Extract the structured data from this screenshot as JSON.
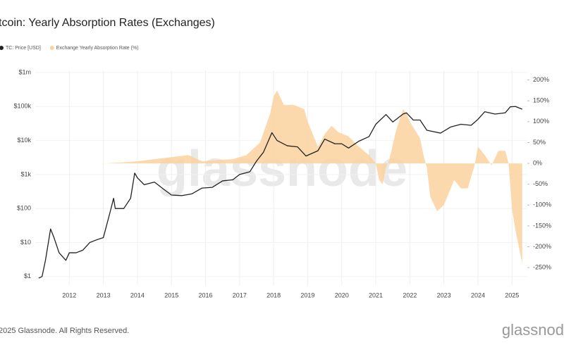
{
  "chart_data": {
    "type": "line",
    "title": "tcoin: Yearly Absorption Rates (Exchanges)",
    "watermark": "glassnode",
    "footer": "2025 Glassnode. All Rights Reserved.",
    "brand": "glassnod",
    "xlim": [
      2011.0,
      2025.45
    ],
    "xticks": [
      2012,
      2013,
      2014,
      2015,
      2016,
      2017,
      2018,
      2019,
      2020,
      2021,
      2022,
      2023,
      2024,
      2025
    ],
    "ylim": [
      0.56,
      1150000
    ],
    "log_y": true,
    "yticks": [
      {
        "value": 1,
        "label": "$1"
      },
      {
        "value": 10,
        "label": "$10"
      },
      {
        "value": 100,
        "label": "$100"
      },
      {
        "value": 1000,
        "label": "$1k"
      },
      {
        "value": 10000,
        "label": "$10k"
      },
      {
        "value": 100000,
        "label": "$100k"
      },
      {
        "value": 1000000,
        "label": "$1m"
      }
    ],
    "y2lim": [
      -292,
      223
    ],
    "y2ticks": [
      {
        "value": 200,
        "label": "200%"
      },
      {
        "value": 150,
        "label": "150%"
      },
      {
        "value": 100,
        "label": "100%"
      },
      {
        "value": 50,
        "label": "50%"
      },
      {
        "value": 0,
        "label": "0%"
      },
      {
        "value": -50,
        "label": "-50%"
      },
      {
        "value": -100,
        "label": "-100%"
      },
      {
        "value": -150,
        "label": "-150%"
      },
      {
        "value": -200,
        "label": "-200%"
      },
      {
        "value": -250,
        "label": "-250%"
      }
    ],
    "grid": true,
    "series": [
      {
        "name": "Exchange Yearly Absorption Rate (%)",
        "color": "#fbd29f",
        "type": "area",
        "axis": "y2",
        "x": [
          2013.0,
          2013.5,
          2014.0,
          2014.5,
          2015.0,
          2015.5,
          2015.9,
          2016.3,
          2016.8,
          2017.2,
          2017.6,
          2017.9,
          2018.0,
          2018.1,
          2018.3,
          2018.6,
          2018.9,
          2019.0,
          2019.3,
          2019.5,
          2019.7,
          2019.9,
          2020.2,
          2020.5,
          2020.8,
          2021.0,
          2021.1,
          2021.2,
          2021.3,
          2021.4,
          2021.6,
          2021.8,
          2021.9,
          2022.0,
          2022.3,
          2022.4,
          2022.5,
          2022.6,
          2022.8,
          2023.0,
          2023.3,
          2023.5,
          2023.7,
          2023.9,
          2024.0,
          2024.2,
          2024.4,
          2024.6,
          2024.8,
          2024.9,
          2025.0,
          2025.1,
          2025.2,
          2025.3
        ],
        "values": [
          0,
          2,
          5,
          10,
          15,
          20,
          5,
          8,
          10,
          20,
          50,
          120,
          160,
          175,
          140,
          140,
          130,
          100,
          40,
          70,
          90,
          75,
          65,
          40,
          20,
          0,
          -40,
          -50,
          -10,
          10,
          80,
          130,
          120,
          100,
          60,
          20,
          -10,
          -80,
          -115,
          -100,
          -40,
          -60,
          -60,
          -5,
          40,
          20,
          -5,
          30,
          30,
          0,
          -110,
          -160,
          -200,
          -240
        ]
      },
      {
        "name": "TC: Price [USD]",
        "color": "#222222",
        "type": "line",
        "axis": "y",
        "x": [
          2011.1,
          2011.2,
          2011.3,
          2011.45,
          2011.55,
          2011.7,
          2011.9,
          2012.0,
          2012.2,
          2012.4,
          2012.6,
          2012.8,
          2013.0,
          2013.2,
          2013.3,
          2013.35,
          2013.6,
          2013.8,
          2013.92,
          2014.0,
          2014.2,
          2014.5,
          2014.8,
          2015.0,
          2015.3,
          2015.6,
          2015.9,
          2016.2,
          2016.5,
          2016.8,
          2017.0,
          2017.3,
          2017.5,
          2017.7,
          2017.95,
          2018.1,
          2018.4,
          2018.7,
          2018.95,
          2019.3,
          2019.5,
          2019.8,
          2020.0,
          2020.2,
          2020.5,
          2020.8,
          2021.0,
          2021.3,
          2021.5,
          2021.8,
          2021.9,
          2022.1,
          2022.3,
          2022.5,
          2022.9,
          2023.2,
          2023.5,
          2023.8,
          2024.0,
          2024.2,
          2024.5,
          2024.8,
          2024.95,
          2025.1,
          2025.3
        ],
        "values": [
          0.9,
          1.0,
          3,
          25,
          14,
          5,
          3,
          5,
          5,
          6,
          10,
          12,
          14,
          80,
          200,
          100,
          100,
          200,
          1100,
          800,
          500,
          600,
          350,
          250,
          240,
          270,
          400,
          420,
          650,
          700,
          1000,
          1200,
          2500,
          4500,
          17000,
          10000,
          7000,
          6500,
          3500,
          5000,
          11000,
          8000,
          8000,
          6000,
          9500,
          13000,
          30000,
          58000,
          35000,
          60000,
          65000,
          40000,
          40000,
          20000,
          16500,
          25000,
          30000,
          28000,
          42000,
          70000,
          60000,
          65000,
          98000,
          100000,
          83000
        ]
      }
    ]
  }
}
